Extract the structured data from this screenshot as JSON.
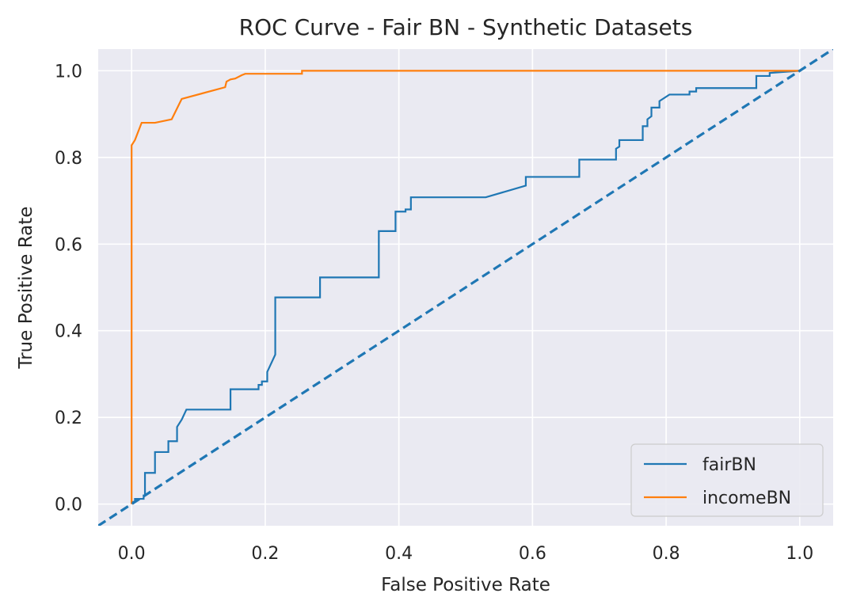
{
  "chart_data": {
    "type": "line",
    "title": "ROC Curve - Fair BN - Synthetic Datasets",
    "xlabel": "False Positive Rate",
    "ylabel": "True Positive Rate",
    "xlim": [
      -0.05,
      1.05
    ],
    "ylim": [
      -0.05,
      1.05
    ],
    "xticks": [
      "0.0",
      "0.2",
      "0.4",
      "0.6",
      "0.8",
      "1.0"
    ],
    "yticks": [
      "0.0",
      "0.2",
      "0.4",
      "0.6",
      "0.8",
      "1.0"
    ],
    "grid": true,
    "legend_position": "lower-right",
    "background": "#eaeaf2",
    "series": [
      {
        "name": "fairBN",
        "color": "#1f77b4",
        "x": [
          0.0,
          0.0,
          0.005,
          0.005,
          0.018,
          0.018,
          0.02,
          0.02,
          0.035,
          0.035,
          0.055,
          0.055,
          0.068,
          0.068,
          0.075,
          0.082,
          0.148,
          0.148,
          0.19,
          0.19,
          0.195,
          0.195,
          0.203,
          0.203,
          0.215,
          0.215,
          0.282,
          0.282,
          0.37,
          0.37,
          0.395,
          0.395,
          0.41,
          0.41,
          0.418,
          0.418,
          0.53,
          0.59,
          0.59,
          0.67,
          0.67,
          0.725,
          0.725,
          0.73,
          0.73,
          0.765,
          0.765,
          0.772,
          0.772,
          0.778,
          0.778,
          0.79,
          0.79,
          0.805,
          0.805,
          0.835,
          0.835,
          0.845,
          0.845,
          0.935,
          0.935,
          0.955,
          0.955,
          1.0
        ],
        "y": [
          0.0,
          0.005,
          0.005,
          0.012,
          0.012,
          0.02,
          0.02,
          0.072,
          0.072,
          0.12,
          0.12,
          0.145,
          0.145,
          0.178,
          0.195,
          0.218,
          0.218,
          0.265,
          0.265,
          0.275,
          0.275,
          0.283,
          0.283,
          0.305,
          0.345,
          0.477,
          0.477,
          0.523,
          0.523,
          0.63,
          0.63,
          0.675,
          0.675,
          0.68,
          0.68,
          0.708,
          0.708,
          0.735,
          0.755,
          0.755,
          0.795,
          0.795,
          0.82,
          0.825,
          0.84,
          0.84,
          0.872,
          0.872,
          0.888,
          0.895,
          0.915,
          0.915,
          0.93,
          0.945,
          0.945,
          0.945,
          0.952,
          0.952,
          0.96,
          0.96,
          0.988,
          0.988,
          0.995,
          1.0
        ]
      },
      {
        "name": "incomeBN",
        "color": "#ff7f0e",
        "x": [
          0.0,
          0.0,
          0.0,
          0.005,
          0.015,
          0.035,
          0.06,
          0.075,
          0.14,
          0.142,
          0.148,
          0.155,
          0.165,
          0.17,
          0.255,
          0.255,
          1.0
        ],
        "y": [
          0.0,
          0.82,
          0.828,
          0.84,
          0.88,
          0.88,
          0.888,
          0.935,
          0.962,
          0.975,
          0.98,
          0.982,
          0.99,
          0.993,
          0.993,
          1.0,
          1.0
        ]
      }
    ],
    "reference_line": {
      "color": "#1f77b4",
      "style": "dashed",
      "x": [
        -0.05,
        1.05
      ],
      "y": [
        -0.05,
        1.05
      ]
    }
  }
}
